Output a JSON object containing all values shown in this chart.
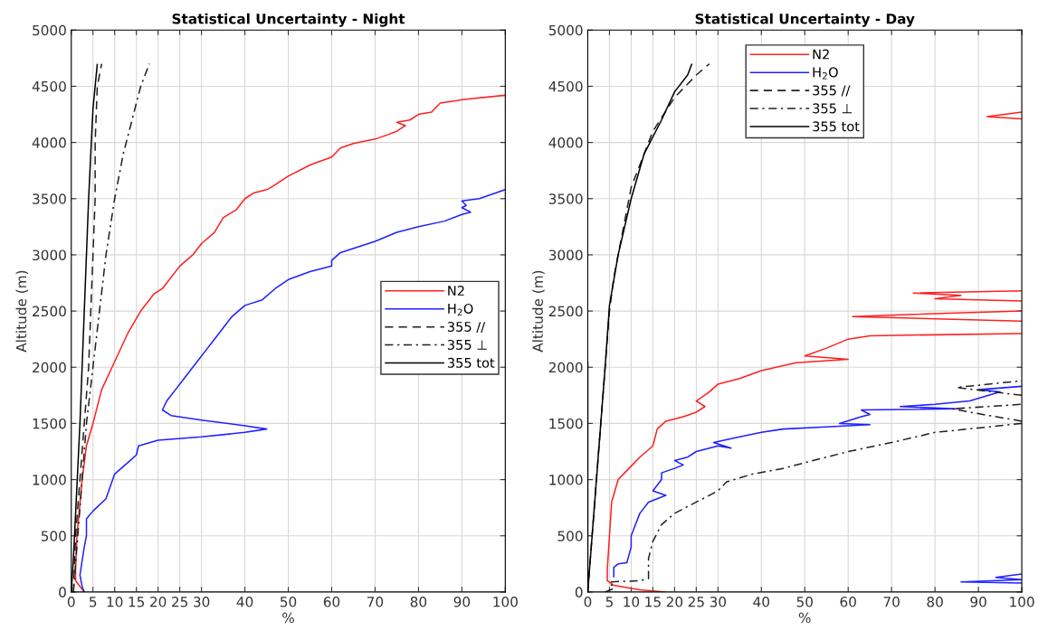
{
  "chart_data": [
    {
      "type": "line",
      "title": "Statistical Uncertainty - Night",
      "xlabel": "%",
      "ylabel": "Altitude (m)",
      "xlim": [
        0,
        100
      ],
      "ylim": [
        0,
        5000
      ],
      "xticks": [
        0,
        5,
        10,
        15,
        20,
        25,
        30,
        40,
        50,
        60,
        70,
        80,
        90,
        100
      ],
      "yticks": [
        0,
        500,
        1000,
        1500,
        2000,
        2500,
        3000,
        3500,
        4000,
        4500,
        5000
      ],
      "grid": true,
      "legend": "right",
      "series": [
        {
          "name": "N2",
          "color": "#ff2020",
          "line_style": "solid",
          "x": [
            3,
            2,
            1,
            1,
            1.3,
            1.8,
            2.5,
            3.5,
            5,
            7,
            10,
            13,
            16,
            19,
            21,
            25,
            28,
            30,
            33,
            35,
            38,
            40,
            42,
            45,
            46,
            48,
            50,
            55,
            60,
            62,
            65,
            70,
            73,
            75,
            77,
            75,
            78,
            80,
            83,
            85,
            90,
            100
          ],
          "values": [
            0,
            50,
            100,
            200,
            500,
            700,
            1000,
            1300,
            1500,
            1800,
            2050,
            2300,
            2500,
            2650,
            2700,
            2900,
            3000,
            3100,
            3200,
            3330,
            3400,
            3500,
            3550,
            3580,
            3600,
            3650,
            3700,
            3800,
            3870,
            3950,
            3990,
            4030,
            4070,
            4100,
            4150,
            4180,
            4200,
            4250,
            4270,
            4350,
            4380,
            4420
          ]
        },
        {
          "name": "H$_{2}$O",
          "color": "#2020ff",
          "line_style": "solid",
          "x": [
            3,
            2.5,
            2,
            3,
            3.5,
            3.5,
            5,
            8,
            10,
            13,
            15,
            15.5,
            20,
            30,
            40,
            45,
            40,
            30,
            23,
            21,
            22,
            24,
            26,
            29,
            31,
            33,
            35,
            37,
            40,
            44,
            47,
            50,
            55,
            60,
            60,
            62,
            70,
            75,
            80,
            86,
            90,
            92,
            90,
            91,
            90,
            94,
            100
          ],
          "values": [
            0,
            50,
            150,
            400,
            500,
            650,
            720,
            830,
            1050,
            1150,
            1220,
            1300,
            1350,
            1380,
            1420,
            1450,
            1480,
            1530,
            1570,
            1620,
            1700,
            1800,
            1900,
            2050,
            2150,
            2250,
            2350,
            2450,
            2550,
            2600,
            2700,
            2780,
            2850,
            2900,
            2950,
            3020,
            3120,
            3200,
            3250,
            3300,
            3360,
            3380,
            3420,
            3440,
            3480,
            3500,
            3580
          ]
        },
        {
          "name": "355 //",
          "color": "#202020",
          "line_style": "dashed",
          "x": [
            0.5,
            1,
            2,
            3,
            4,
            5,
            5.5,
            5.5,
            6,
            7
          ],
          "values": [
            0,
            500,
            1000,
            1500,
            2000,
            3000,
            3500,
            4000,
            4500,
            4700
          ]
        },
        {
          "name": "355 ⊥",
          "color": "#202020",
          "line_style": "dashdot",
          "x": [
            0.5,
            1.5,
            2.5,
            3.5,
            5,
            6.5,
            8,
            10,
            12,
            14,
            16,
            18
          ],
          "values": [
            0,
            500,
            1000,
            1500,
            2000,
            2500,
            3000,
            3500,
            3900,
            4200,
            4500,
            4700
          ]
        },
        {
          "name": "355 tot",
          "color": "#000000",
          "line_style": "solid",
          "x": [
            0,
            0.5,
            1,
            2,
            3,
            4,
            5,
            6
          ],
          "values": [
            0,
            300,
            700,
            1500,
            2500,
            3500,
            4300,
            4700
          ]
        }
      ]
    },
    {
      "type": "line",
      "title": "Statistical Uncertainty - Day",
      "xlabel": "%",
      "ylabel": "Altitude (m)",
      "xlim": [
        0,
        100
      ],
      "ylim": [
        0,
        5000
      ],
      "xticks": [
        0,
        5,
        10,
        15,
        20,
        25,
        30,
        40,
        50,
        60,
        70,
        80,
        90,
        100
      ],
      "yticks": [
        0,
        500,
        1000,
        1500,
        2000,
        2500,
        3000,
        3500,
        4000,
        4500,
        5000
      ],
      "grid": true,
      "legend": "top",
      "series": [
        {
          "name": "N2",
          "color": "#ff2020",
          "line_style": "solid",
          "x": [
            18,
            12,
            6,
            4.5,
            4.5,
            5,
            5.5,
            7,
            9,
            12,
            15,
            16,
            18,
            22,
            25,
            27,
            25,
            28,
            30,
            35,
            40,
            48,
            60,
            50,
            55,
            60,
            65,
            100,
            null,
            100,
            61,
            75,
            100,
            null,
            100,
            80,
            86,
            75,
            100,
            null,
            100,
            92,
            100
          ],
          "values": [
            0,
            20,
            60,
            100,
            200,
            500,
            800,
            1000,
            1080,
            1200,
            1300,
            1450,
            1520,
            1560,
            1600,
            1650,
            1700,
            1780,
            1850,
            1900,
            1970,
            2040,
            2070,
            2100,
            2170,
            2250,
            2280,
            2300,
            null,
            2410,
            2450,
            2470,
            2500,
            null,
            2590,
            2610,
            2640,
            2660,
            2680,
            null,
            4210,
            4230,
            4270
          ]
        },
        {
          "name": "H$_{2}$O",
          "color": "#2020ff",
          "line_style": "solid",
          "x": [
            6,
            6,
            7,
            9,
            10,
            10,
            11,
            12,
            14,
            18,
            15,
            17,
            17,
            20,
            22,
            20,
            23,
            25,
            30,
            33,
            29,
            35,
            40,
            45,
            55,
            65,
            58,
            63,
            65,
            63,
            85,
            72,
            80,
            88,
            95,
            90,
            100,
            null,
            100,
            94,
            100,
            86,
            100
          ],
          "values": [
            130,
            220,
            250,
            260,
            400,
            500,
            600,
            700,
            800,
            860,
            900,
            1000,
            1060,
            1100,
            1130,
            1170,
            1200,
            1250,
            1300,
            1280,
            1330,
            1380,
            1420,
            1450,
            1470,
            1490,
            1500,
            1560,
            1580,
            1620,
            1630,
            1650,
            1670,
            1700,
            1780,
            1800,
            1830,
            null,
            160,
            130,
            110,
            90,
            80
          ]
        },
        {
          "name": "355 //",
          "color": "#202020",
          "line_style": "dashed",
          "x": [
            0,
            1,
            2,
            3,
            4,
            5,
            6,
            8,
            10,
            12,
            15,
            20,
            25,
            28
          ],
          "values": [
            0,
            500,
            1000,
            1500,
            2000,
            2500,
            2800,
            3200,
            3600,
            3800,
            4100,
            4400,
            4600,
            4700
          ]
        },
        {
          "name": "355 ⊥",
          "color": "#202020",
          "line_style": "dashdot",
          "x": [
            4,
            6,
            5,
            12,
            14,
            14,
            15,
            17,
            20,
            25,
            30,
            32,
            38,
            45,
            50,
            60,
            70,
            80,
            90,
            100,
            null,
            100,
            88,
            84,
            100,
            null,
            100,
            85,
            90,
            100
          ],
          "values": [
            0,
            30,
            90,
            100,
            120,
            300,
            450,
            600,
            700,
            800,
            900,
            980,
            1050,
            1100,
            1150,
            1250,
            1330,
            1420,
            1460,
            1500,
            null,
            1520,
            1600,
            1630,
            1670,
            null,
            1750,
            1820,
            1840,
            1880
          ]
        },
        {
          "name": "355 tot",
          "color": "#000000",
          "line_style": "solid",
          "x": [
            0,
            1,
            2,
            3,
            4,
            5,
            7,
            10,
            13,
            17,
            20,
            23,
            24
          ],
          "values": [
            0,
            500,
            1000,
            1500,
            2000,
            2550,
            3000,
            3500,
            3900,
            4200,
            4450,
            4600,
            4700
          ]
        },
        {
          "color": "#000000",
          "line_style": "solid",
          "x": [
            0,
            0
          ],
          "values": [
            2050,
            0
          ]
        }
      ]
    }
  ]
}
